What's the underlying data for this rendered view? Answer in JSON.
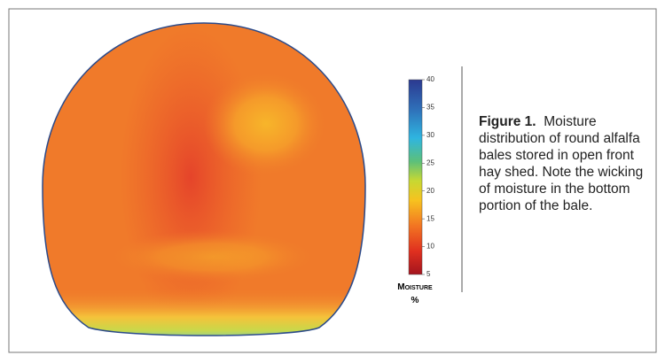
{
  "chart_data": {
    "type": "contour",
    "colorbar": {
      "label": "Moisture",
      "unit": "%",
      "lim": [
        5,
        40
      ],
      "ticks": [
        5,
        10,
        15,
        20,
        25,
        30,
        35,
        40
      ]
    },
    "caption": {
      "label": "Figure 1.",
      "text": "Moisture distribution of round alfalfa bales stored in open front hay shed. Note the wicking of moisture in the bottom portion of the bale."
    }
  }
}
